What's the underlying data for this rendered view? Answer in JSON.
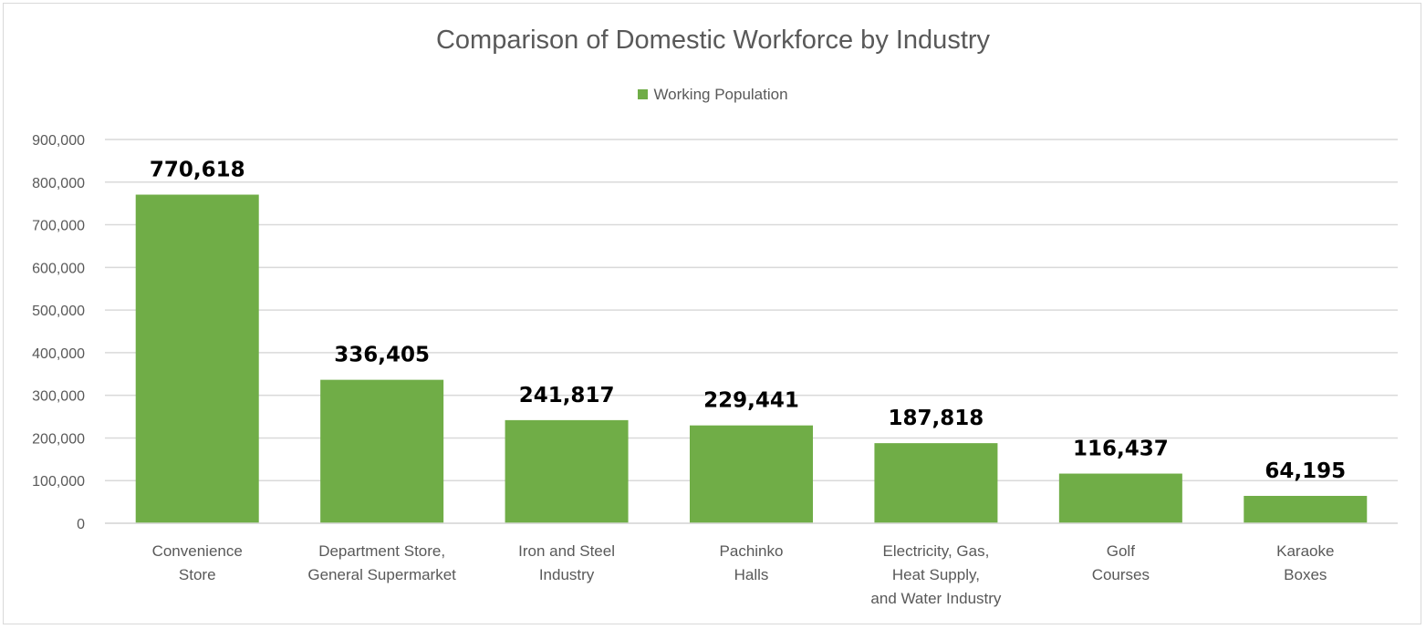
{
  "chart_data": {
    "type": "bar",
    "title": "Comparison of Domestic Workforce by Industry",
    "legend": {
      "position": "top",
      "entries": [
        "Working Population"
      ]
    },
    "categories": [
      [
        "Convenience",
        "Store"
      ],
      [
        "Department Store,",
        "General Supermarket"
      ],
      [
        "Iron and Steel",
        "Industry"
      ],
      [
        "Pachinko",
        "Halls"
      ],
      [
        "Electricity, Gas,",
        "Heat Supply,",
        "and Water Industry"
      ],
      [
        "Golf",
        "Courses"
      ],
      [
        "Karaoke",
        "Boxes"
      ]
    ],
    "series": [
      {
        "name": "Working Population",
        "color": "#70ad47",
        "values": [
          770618,
          336405,
          241817,
          229441,
          187818,
          116437,
          64195
        ],
        "labels": [
          "770,618",
          "336,405",
          "241,817",
          "229,441",
          "187,818",
          "116,437",
          "64,195"
        ]
      }
    ],
    "xlabel": "",
    "ylabel": "",
    "ylim": [
      0,
      900000
    ],
    "yticks": [
      0,
      100000,
      200000,
      300000,
      400000,
      500000,
      600000,
      700000,
      800000,
      900000
    ],
    "ytick_labels": [
      "0",
      "100,000",
      "200,000",
      "300,000",
      "400,000",
      "500,000",
      "600,000",
      "700,000",
      "800,000",
      "900,000"
    ],
    "grid": true,
    "gridColor": "#d9d9d9"
  }
}
